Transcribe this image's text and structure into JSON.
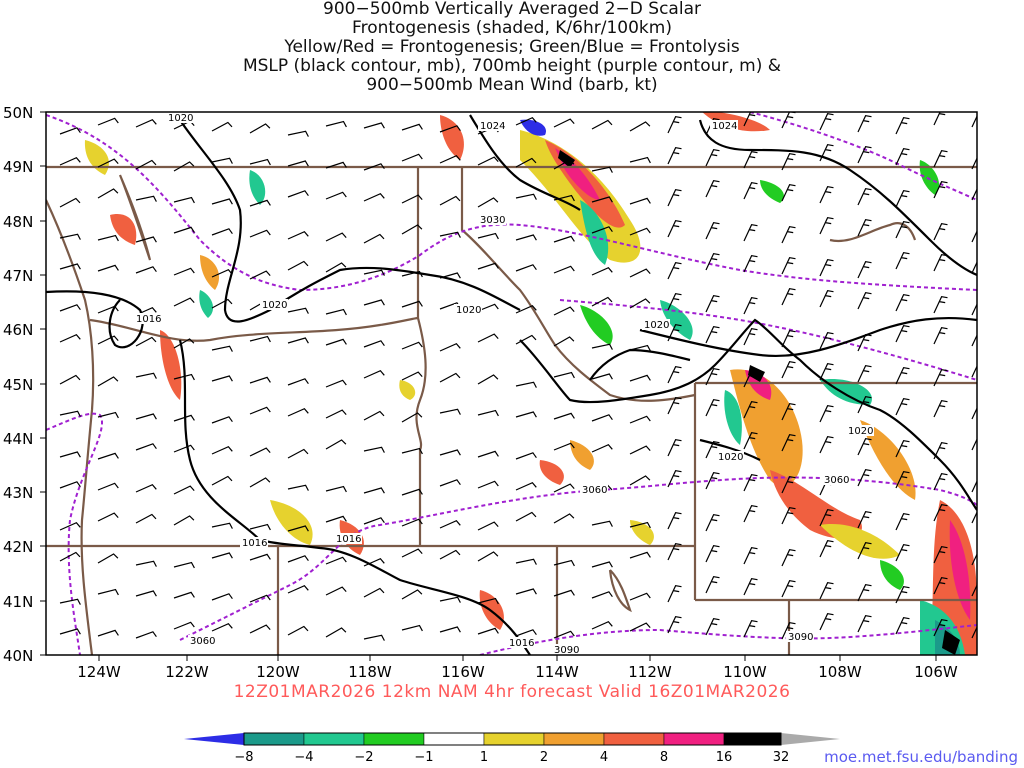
{
  "title_lines": [
    "900−500mb Vertically Averaged 2−D Scalar",
    "Frontogenesis (shaded, K/6hr/100km)",
    "Yellow/Red = Frontogenesis;  Green/Blue = Frontolysis",
    "MSLP (black contour, mb), 700mb height (purple contour, m) &",
    "900−500mb Mean Wind (barb, kt)"
  ],
  "map": {
    "lat_labels": [
      "50N",
      "49N",
      "48N",
      "47N",
      "46N",
      "45N",
      "44N",
      "43N",
      "42N",
      "41N",
      "40N"
    ],
    "lon_labels": [
      "124W",
      "122W",
      "120W",
      "118W",
      "116W",
      "114W",
      "112W",
      "110W",
      "108W",
      "106W"
    ],
    "mslp_labels": [
      "1020",
      "1024",
      "1024",
      "1016",
      "1020",
      "1020",
      "1020",
      "1020",
      "1020",
      "1016",
      "1016",
      "1016"
    ],
    "height_labels": [
      "3030",
      "3060",
      "3060",
      "3060",
      "3090",
      "3090"
    ],
    "colors": {
      "mslp_contour": "#000000",
      "height_contour": "#a020d0",
      "state_borders": "#7a5a48"
    }
  },
  "valid_text": "12Z01MAR2026  12km  NAM  4hr  forecast  Valid  16Z01MAR2026",
  "colorbar": {
    "labels": [
      "−8",
      "−4",
      "−2",
      "−1",
      "1",
      "2",
      "4",
      "8",
      "16",
      "32"
    ],
    "colors": [
      "#2d2de6",
      "#1b9a8a",
      "#22c890",
      "#22cc22",
      "#ffffff",
      "#e6d22e",
      "#f0a030",
      "#f06040",
      "#f02080",
      "#000000",
      "#aaaaaa"
    ]
  },
  "credit": "moe.met.fsu.edu/banding"
}
